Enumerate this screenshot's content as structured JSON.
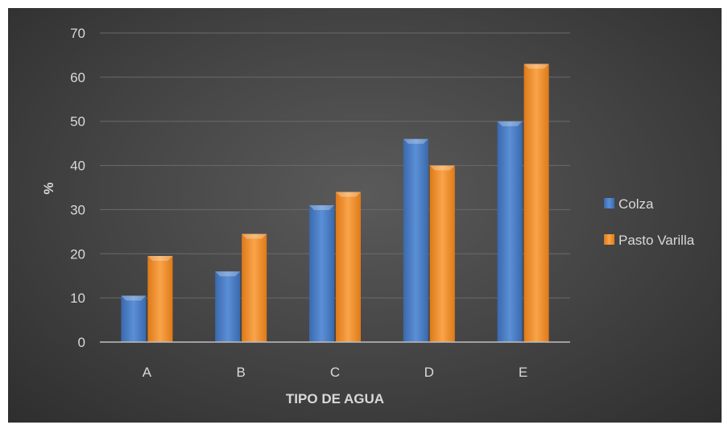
{
  "chart_data": {
    "type": "bar",
    "categories": [
      "A",
      "B",
      "C",
      "D",
      "E"
    ],
    "series": [
      {
        "name": "Colza",
        "values": [
          10.5,
          16,
          31,
          46,
          50
        ],
        "color": "#4a7ec6"
      },
      {
        "name": "Pasto Varilla",
        "values": [
          19.5,
          24.5,
          34,
          40,
          63
        ],
        "color": "#f0912c"
      }
    ],
    "title": "",
    "xlabel": "TIPO DE AGUA",
    "ylabel": "%",
    "ylim": [
      0,
      70
    ],
    "yticks": [
      0,
      10,
      20,
      30,
      40,
      50,
      60,
      70
    ],
    "grid": true,
    "legend_position": "right",
    "background_color": "#474747",
    "gridline_color": "#6a6a6a",
    "text_color": "#d9d9d9"
  }
}
